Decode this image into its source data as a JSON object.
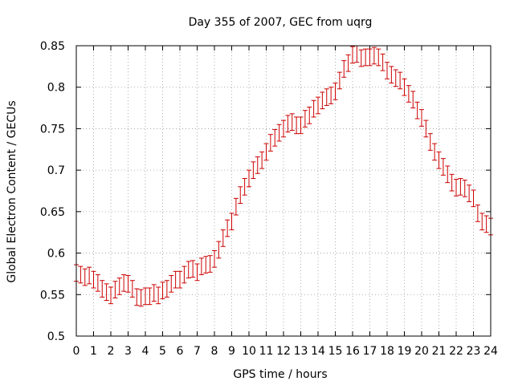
{
  "chart_data": {
    "type": "scatter",
    "title": "Day 355 of 2007, GEC from uqrg",
    "xlabel": "GPS time / hours",
    "ylabel": "Global Electron Content / GECUs",
    "xlim": [
      0,
      24
    ],
    "ylim": [
      0.5,
      0.85
    ],
    "grid": true,
    "x_ticks": [
      "0",
      "1",
      "2",
      "3",
      "4",
      "5",
      "6",
      "7",
      "8",
      "9",
      "10",
      "11",
      "12",
      "13",
      "14",
      "15",
      "16",
      "17",
      "18",
      "19",
      "20",
      "21",
      "22",
      "23",
      "24"
    ],
    "y_ticks": [
      "0.5",
      "0.55",
      "0.6",
      "0.65",
      "0.7",
      "0.75",
      "0.8",
      "0.85"
    ],
    "colors": {
      "series": "#cc0000",
      "grid": "#999999",
      "axes": "#000000"
    },
    "series": [
      {
        "error": 0.01,
        "x": [
          0,
          0.25,
          0.5,
          0.75,
          1,
          1.25,
          1.5,
          1.75,
          2,
          2.25,
          2.5,
          2.75,
          3,
          3.25,
          3.5,
          3.75,
          4,
          4.25,
          4.5,
          4.75,
          5,
          5.25,
          5.5,
          5.75,
          6,
          6.25,
          6.5,
          6.75,
          7,
          7.25,
          7.5,
          7.75,
          8,
          8.25,
          8.5,
          8.75,
          9,
          9.25,
          9.5,
          9.75,
          10,
          10.25,
          10.5,
          10.75,
          11,
          11.25,
          11.5,
          11.75,
          12,
          12.25,
          12.5,
          12.75,
          13,
          13.25,
          13.5,
          13.75,
          14,
          14.25,
          14.5,
          14.75,
          15,
          15.25,
          15.5,
          15.75,
          16,
          16.25,
          16.5,
          16.75,
          17,
          17.25,
          17.5,
          17.75,
          18,
          18.25,
          18.5,
          18.75,
          19,
          19.25,
          19.5,
          19.75,
          20,
          20.25,
          20.5,
          20.75,
          21,
          21.25,
          21.5,
          21.75,
          22,
          22.25,
          22.5,
          22.75,
          23,
          23.25,
          23.5,
          23.75,
          24
        ],
        "y": [
          0.576,
          0.574,
          0.571,
          0.573,
          0.568,
          0.564,
          0.557,
          0.553,
          0.549,
          0.556,
          0.56,
          0.564,
          0.563,
          0.557,
          0.547,
          0.546,
          0.548,
          0.548,
          0.552,
          0.549,
          0.555,
          0.557,
          0.563,
          0.568,
          0.568,
          0.574,
          0.58,
          0.581,
          0.577,
          0.584,
          0.586,
          0.587,
          0.593,
          0.604,
          0.618,
          0.63,
          0.638,
          0.656,
          0.67,
          0.68,
          0.69,
          0.7,
          0.706,
          0.712,
          0.722,
          0.733,
          0.739,
          0.745,
          0.75,
          0.756,
          0.758,
          0.754,
          0.754,
          0.762,
          0.766,
          0.774,
          0.778,
          0.784,
          0.788,
          0.79,
          0.795,
          0.808,
          0.822,
          0.829,
          0.839,
          0.84,
          0.835,
          0.836,
          0.836,
          0.838,
          0.836,
          0.83,
          0.82,
          0.815,
          0.811,
          0.808,
          0.8,
          0.792,
          0.785,
          0.772,
          0.763,
          0.75,
          0.734,
          0.722,
          0.712,
          0.704,
          0.695,
          0.685,
          0.679,
          0.68,
          0.678,
          0.672,
          0.666,
          0.648,
          0.638,
          0.635,
          0.632
        ]
      }
    ]
  }
}
